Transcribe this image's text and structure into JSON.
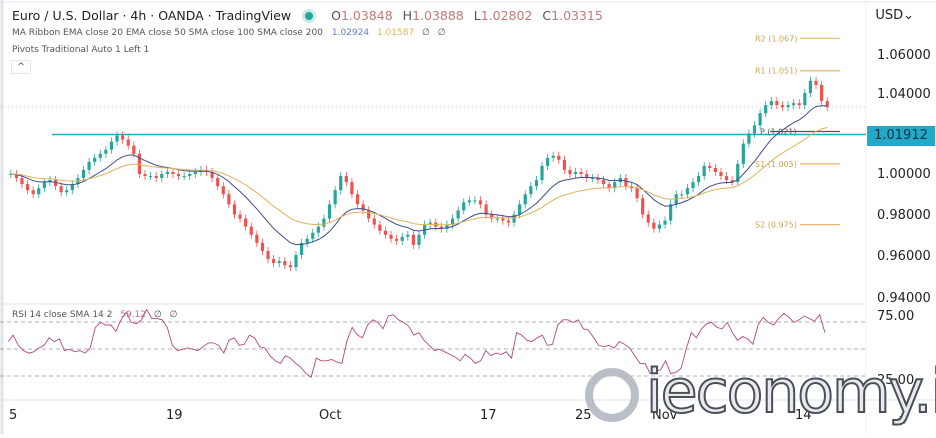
{
  "header": {
    "title": "Euro / U.S. Dollar · 4h · OANDA · TradingView",
    "ohlc": {
      "open_label": "O",
      "open": "1.03848",
      "high_label": "H",
      "high": "1.03888",
      "low_label": "L",
      "low": "1.02802",
      "close_label": "C",
      "close": "1.03315"
    },
    "ma_ribbon": {
      "label": "MA Ribbon EMA close 20 EMA close 50 SMA close 100 SMA close 200",
      "v1": "1.02924",
      "v2": "1.01587",
      "v3": "∅",
      "v4": "∅"
    },
    "pivots": {
      "label": "Pivots Traditional Auto 1 Left 1"
    },
    "collapse_icon": "^"
  },
  "price_axis": {
    "currency": "USD",
    "currency_icon": "chevron-down-icon",
    "ticks": [
      "1.06000",
      "1.04000",
      "1.00000",
      "0.98000",
      "0.96000",
      "0.94000"
    ],
    "current_price": "1.01912",
    "current_price_color": "#23a8c8"
  },
  "rsi": {
    "label": "RSI 14 close SMA 14 2",
    "value": "59.12",
    "v2": "∅",
    "v3": "∅",
    "ticks": [
      "75.00",
      "25.00"
    ]
  },
  "time_axis": {
    "labels": [
      "5",
      "19",
      "Oct",
      "17",
      "25",
      "Nov",
      "14"
    ]
  },
  "watermark": {
    "text": "ieconomy.io",
    "icon": "e"
  },
  "chart_data": [
    {
      "type": "candlestick",
      "title": "Euro / U.S. Dollar · 4h · OANDA",
      "ylabel": "USD",
      "ylim": [
        0.93,
        1.075
      ],
      "x_ticks": [
        "5",
        "19",
        "Oct",
        "17",
        "25",
        "Nov",
        "14"
      ],
      "y_ticks": [
        0.94,
        0.96,
        0.98,
        1.0,
        1.04,
        1.06
      ],
      "current_price": 1.01912,
      "horizontal_line": 1.0195,
      "pivots": [
        {
          "name": "R2",
          "value": 1.067
        },
        {
          "name": "R1",
          "value": 1.051
        },
        {
          "name": "P",
          "value": 1.021
        },
        {
          "name": "S1",
          "value": 1.005
        },
        {
          "name": "S2",
          "value": 0.975
        }
      ],
      "close_series": [
        1.0,
        0.998,
        0.995,
        0.992,
        0.99,
        0.993,
        0.996,
        0.997,
        0.994,
        0.991,
        0.992,
        0.995,
        0.998,
        1.002,
        1.006,
        1.008,
        1.01,
        1.012,
        1.016,
        1.019,
        1.017,
        1.014,
        1.01,
        1.0,
        0.999,
        0.999,
        0.998,
        1.0,
        1.001,
        1.0,
        0.999,
        0.999,
        1.0,
        1.001,
        1.002,
        1.001,
        0.998,
        0.994,
        0.99,
        0.985,
        0.98,
        0.978,
        0.974,
        0.97,
        0.966,
        0.962,
        0.958,
        0.956,
        0.957,
        0.955,
        0.954,
        0.96,
        0.966,
        0.968,
        0.971,
        0.974,
        0.978,
        0.985,
        0.992,
        0.999,
        0.996,
        0.99,
        0.985,
        0.982,
        0.978,
        0.975,
        0.972,
        0.97,
        0.968,
        0.967,
        0.969,
        0.97,
        0.965,
        0.97,
        0.975,
        0.976,
        0.974,
        0.973,
        0.975,
        0.978,
        0.982,
        0.986,
        0.987,
        0.987,
        0.985,
        0.98,
        0.978,
        0.978,
        0.977,
        0.976,
        0.98,
        0.985,
        0.99,
        0.994,
        0.997,
        1.004,
        1.008,
        1.009,
        1.007,
        1.002,
        1.0,
        1.001,
        1.0,
        0.998,
        0.998,
        0.997,
        0.995,
        0.993,
        0.996,
        0.998,
        0.994,
        0.993,
        0.988,
        0.98,
        0.976,
        0.973,
        0.975,
        0.977,
        0.985,
        0.99,
        0.99,
        0.993,
        0.996,
        0.999,
        1.004,
        1.003,
        1.001,
        0.999,
        0.997,
        0.996,
        1.005,
        1.015,
        1.02,
        1.024,
        1.03,
        1.034,
        1.036,
        1.034,
        1.033,
        1.034,
        1.035,
        1.034,
        1.04,
        1.046,
        1.044,
        1.036,
        1.033
      ],
      "ema20_end": 1.02924,
      "ema50_end": 1.01587
    },
    {
      "type": "line",
      "title": "RSI 14 close SMA 14 2",
      "ylim": [
        0,
        100
      ],
      "y_ticks": [
        25,
        75
      ],
      "bands": [
        70,
        50,
        30
      ],
      "last_value": 59.12,
      "values": [
        55,
        60,
        52,
        48,
        46,
        47,
        50,
        52,
        58,
        55,
        57,
        48,
        49,
        47,
        48,
        46,
        50,
        66,
        70,
        68,
        68,
        63,
        72,
        78,
        70,
        69,
        72,
        80,
        73,
        73,
        72,
        66,
        52,
        48,
        49,
        50,
        49,
        48,
        51,
        54,
        54,
        52,
        46,
        56,
        58,
        52,
        53,
        60,
        58,
        51,
        50,
        44,
        40,
        38,
        44,
        42,
        38,
        35,
        30,
        27,
        42,
        40,
        40,
        41,
        39,
        38,
        56,
        66,
        60,
        58,
        68,
        72,
        70,
        65,
        75,
        76,
        72,
        70,
        67,
        60,
        62,
        56,
        52,
        48,
        49,
        47,
        45,
        43,
        40,
        45,
        42,
        38,
        40,
        48,
        44,
        46,
        45,
        47,
        42,
        62,
        60,
        56,
        55,
        58,
        60,
        52,
        53,
        68,
        72,
        72,
        70,
        72,
        65,
        64,
        58,
        52,
        51,
        52,
        50,
        55,
        53,
        50,
        44,
        38,
        38,
        30,
        32,
        33,
        40,
        30,
        31,
        34,
        49,
        62,
        58,
        65,
        69,
        70,
        66,
        65,
        70,
        62,
        56,
        59,
        57,
        53,
        68,
        74,
        70,
        68,
        73,
        77,
        74,
        70,
        72,
        75,
        73,
        71,
        76,
        62
      ]
    }
  ]
}
